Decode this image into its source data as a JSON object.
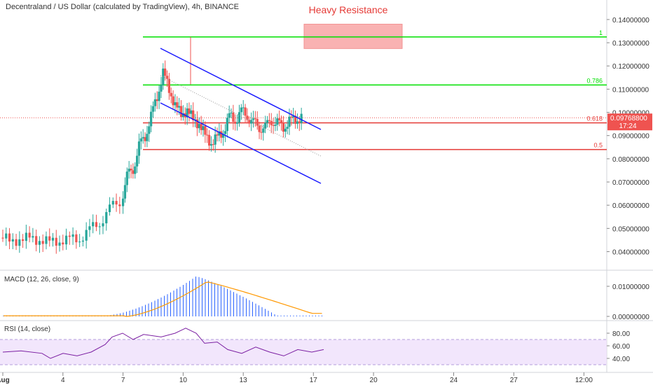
{
  "header": {
    "title": "Decentraland / US Dollar (calculated by TradingView), 4h, BINANCE"
  },
  "annotation": {
    "text": "Heavy Resistance",
    "color": "#e53935"
  },
  "colors": {
    "up": "#26a69a",
    "down": "#ef5350",
    "green_line": "#00e000",
    "red_line": "#e53935",
    "channel": "#1a1aff",
    "macd_hist": "#2962ff",
    "macd_signal": "#ff9800",
    "rsi": "#7b1fa2"
  },
  "price_axis": {
    "ticks": [
      "0.14000000",
      "0.13000000",
      "0.12000000",
      "0.11000000",
      "0.10000000",
      "0.09000000",
      "0.08000000",
      "0.07000000",
      "0.06000000",
      "0.05000000",
      "0.04000000"
    ],
    "values": [
      0.14,
      0.13,
      0.12,
      0.11,
      0.1,
      0.09,
      0.08,
      0.07,
      0.06,
      0.05,
      0.04
    ]
  },
  "last_price": {
    "value": 0.097688,
    "label": "0.09768800",
    "countdown": "17:24"
  },
  "fib_levels": [
    {
      "label": "1",
      "value": 0.1325,
      "color_key": "green_line"
    },
    {
      "label": "0.786",
      "value": 0.1118,
      "color_key": "green_line"
    },
    {
      "label": "0.618",
      "value": 0.0955,
      "color_key": "red_line"
    },
    {
      "label": "0.5",
      "value": 0.084,
      "color_key": "red_line"
    }
  ],
  "resistance_zone": {
    "from": 0.1275,
    "to": 0.138
  },
  "time_axis": {
    "labels": [
      "Aug",
      "4",
      "7",
      "10",
      "13",
      "17",
      "20",
      "24",
      "27",
      "12:00"
    ],
    "days": [
      1,
      4,
      7,
      10,
      13,
      16.5,
      19.5,
      23.5,
      26.5,
      30.0
    ]
  },
  "macd": {
    "title": "MACD (12, 26, close, 9)",
    "ticks": [
      "0.01000000",
      "0.00000000"
    ],
    "values": [
      0.01,
      0
    ]
  },
  "rsi": {
    "title": "RSI (14, close)",
    "ticks": [
      "80.00",
      "60.00",
      "40.00"
    ],
    "values": [
      80,
      60,
      40
    ],
    "band": [
      30,
      70
    ]
  },
  "chart_data": {
    "type": "candlestick",
    "title": "Decentraland / US Dollar (calculated by TradingView), 4h, BINANCE",
    "series": [
      {
        "name": "price_close",
        "x_day": [
          1,
          1.5,
          2,
          2.5,
          3,
          3.5,
          4,
          4.5,
          5,
          5.5,
          6,
          6.5,
          7,
          7.3,
          7.6,
          7.9,
          8.2,
          8.5,
          8.8,
          9.1,
          9.4,
          9.7,
          10,
          10.3,
          10.6,
          10.9,
          11.2,
          11.5,
          11.8,
          12.1,
          12.4,
          12.7,
          13,
          13.3,
          13.6,
          13.9,
          14.2,
          14.5,
          14.8,
          15.1,
          15.4,
          15.7,
          16.0
        ],
        "values": [
          0.046,
          0.045,
          0.045,
          0.046,
          0.045,
          0.044,
          0.045,
          0.045,
          0.046,
          0.049,
          0.053,
          0.058,
          0.062,
          0.072,
          0.076,
          0.085,
          0.09,
          0.098,
          0.107,
          0.117,
          0.11,
          0.103,
          0.099,
          0.101,
          0.097,
          0.095,
          0.09,
          0.087,
          0.089,
          0.092,
          0.098,
          0.097,
          0.1,
          0.099,
          0.095,
          0.094,
          0.093,
          0.097,
          0.095,
          0.094,
          0.096,
          0.097,
          0.0977
        ]
      }
    ],
    "ylim": [
      0.032,
      0.146
    ]
  }
}
